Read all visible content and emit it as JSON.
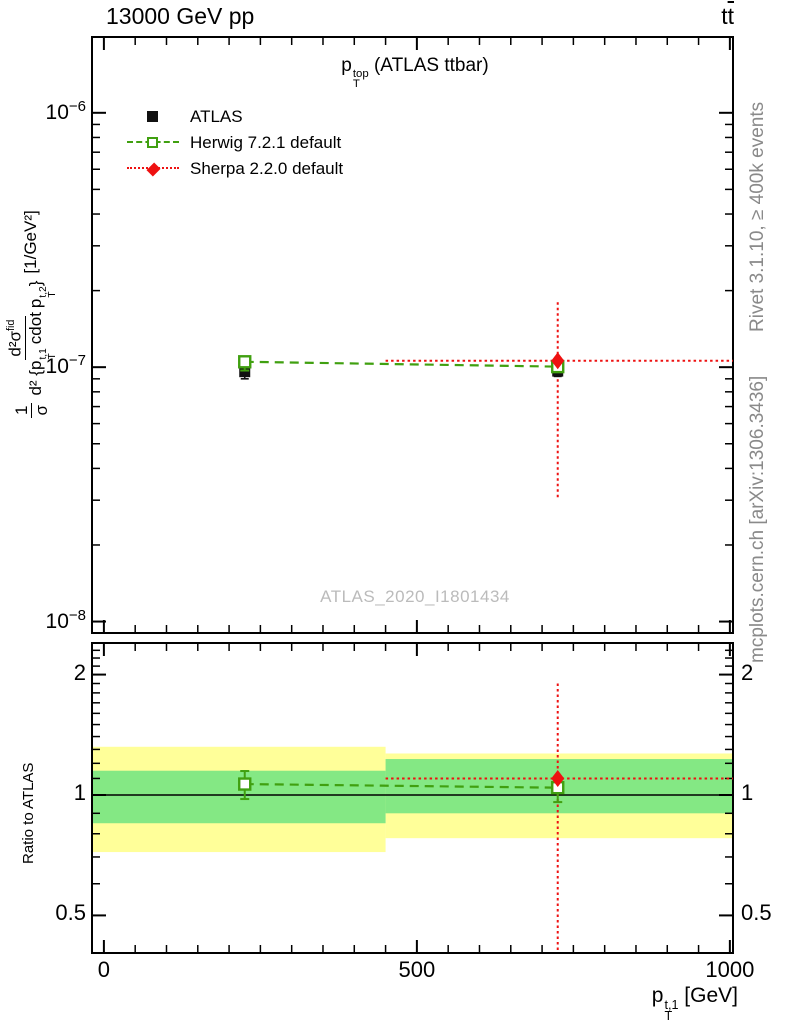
{
  "header": {
    "beam": "13000 GeV pp",
    "process_t1": "t",
    "process_t2": "t"
  },
  "plot_title": {
    "p": "p",
    "sup": "top",
    "sub": "T",
    "rest": " (ATLAS ttbar)"
  },
  "legend": [
    {
      "label": "ATLAS",
      "marker": "filled-square",
      "line": "none"
    },
    {
      "label": "Herwig 7.2.1 default",
      "marker": "open-square",
      "line": "dashed"
    },
    {
      "label": "Sherpa 2.2.0 default",
      "marker": "diamond",
      "line": "dotted"
    }
  ],
  "watermark": "ATLAS_2020_I1801434",
  "right_texts": {
    "top": "Rivet 3.1.10, ≥ 400k events",
    "bottom": "mcplots.cern.ch [arXiv:1306.3436]"
  },
  "ratio_label": "Ratio to ATLAS",
  "axis_y_label": {
    "f1num": "1",
    "f1den": "σ",
    "f2num": "d²σ",
    "f2numsup": "fid",
    "f2den_pre": "d² {",
    "p": "p",
    "p1sup": "t,1",
    "psub": "T",
    "cdot": "cdot",
    "p2sup": "t,2",
    "f2den_post": "}",
    "unit": "[1/GeV²]"
  },
  "x_axis_title": {
    "p": "p",
    "sup": "t,1",
    "sub": "T",
    "rest": " [GeV]"
  },
  "ticks": {
    "x": {
      "majors": [
        {
          "v": 0,
          "label": "0"
        },
        {
          "v": 500,
          "label": "500"
        },
        {
          "v": 1000,
          "label": "1000"
        }
      ],
      "minor_min": 0,
      "minor_max": 1000,
      "minor_step": 50
    },
    "y_main": {
      "majors": [
        {
          "exp": -6,
          "base": "10",
          "sup": "−6"
        },
        {
          "exp": -7,
          "base": "10",
          "sup": "−7"
        },
        {
          "exp": -8,
          "base": "10",
          "sup": "−8"
        }
      ]
    },
    "y_ratio": {
      "majors": [
        {
          "v": 2,
          "label": "2"
        },
        {
          "v": 1,
          "label": "1"
        },
        {
          "v": 0.5,
          "label": "0.5"
        }
      ],
      "minor_min": 0.4,
      "minor_max": 2.4,
      "minor_step": 0.1
    }
  },
  "colors": {
    "herwig": "#40a010",
    "sherpa": "#ee1111",
    "atlas": "#111111",
    "band_green": "#84e884",
    "band_yellow": "#ffff99",
    "frame": "#000000",
    "gray_text": "#8a8a8a",
    "watermark": "#bbbbbb"
  },
  "layout": {
    "frame_main": [
      92,
      37,
      733,
      633
    ],
    "frame_ratio": [
      92,
      643,
      733,
      953
    ],
    "x_range": [
      -19,
      1005
    ],
    "main_logy": [
      -8.045,
      -5.702
    ],
    "ratio_logy": [
      -0.395,
      0.38
    ]
  },
  "chart_data": {
    "type": "scatter",
    "title": "pT^top (ATLAS ttbar)",
    "xlabel": "pT^t,1 [GeV]",
    "ylabel": "1/σ d²σ^fid / d²{pT^t,1 cdot pT^t,2} [1/GeV²]",
    "xlim": [
      0,
      1000
    ],
    "ylim_main": [
      1e-08,
      1e-06
    ],
    "ylim_ratio": [
      0.4,
      2.4
    ],
    "x_bins": [
      [
        0,
        450
      ],
      [
        450,
        1000
      ]
    ],
    "main": {
      "atlas_points": [
        {
          "x": 225,
          "y": 9.6e-08,
          "yerr": [
            9e-08,
            1e-07
          ]
        },
        {
          "x": 725,
          "y": 9.65e-08,
          "yerr": [
            9.2e-08,
            1e-07
          ]
        }
      ],
      "herwig_points": [
        {
          "x": 225,
          "y": 1.05e-07,
          "yerr": [
            9.7e-08,
            1.1e-07
          ]
        },
        {
          "x": 725,
          "y": 1.005e-07,
          "yerr": [
            9.6e-08,
            1.05e-07
          ]
        }
      ],
      "herwig_line": [
        {
          "x": 225,
          "y": 1.05e-07
        },
        {
          "x": 725,
          "y": 1.005e-07
        }
      ],
      "sherpa_points": [
        {
          "x": 725,
          "y": 1.06e-07,
          "yerr": [
            3e-08,
            1.8e-07
          ],
          "xspan": [
            450,
            "max"
          ]
        }
      ]
    },
    "ratio": {
      "unity": 1,
      "bands": [
        {
          "x": [
            "min",
            450
          ],
          "yellow": [
            0.72,
            1.32
          ],
          "green": [
            0.85,
            1.15
          ]
        },
        {
          "x": [
            450,
            "max"
          ],
          "yellow": [
            0.78,
            1.27
          ],
          "green": [
            0.9,
            1.23
          ]
        }
      ],
      "herwig_points": [
        {
          "x": 225,
          "r": 1.065,
          "err": [
            0.977,
            1.148
          ]
        },
        {
          "x": 725,
          "r": 1.043,
          "err": [
            0.96,
            1.1
          ]
        }
      ],
      "sherpa_points": [
        {
          "x": 725,
          "r": 1.1,
          "err": [
            0.403,
            1.9
          ],
          "xspan": [
            450,
            "max"
          ]
        }
      ]
    }
  }
}
